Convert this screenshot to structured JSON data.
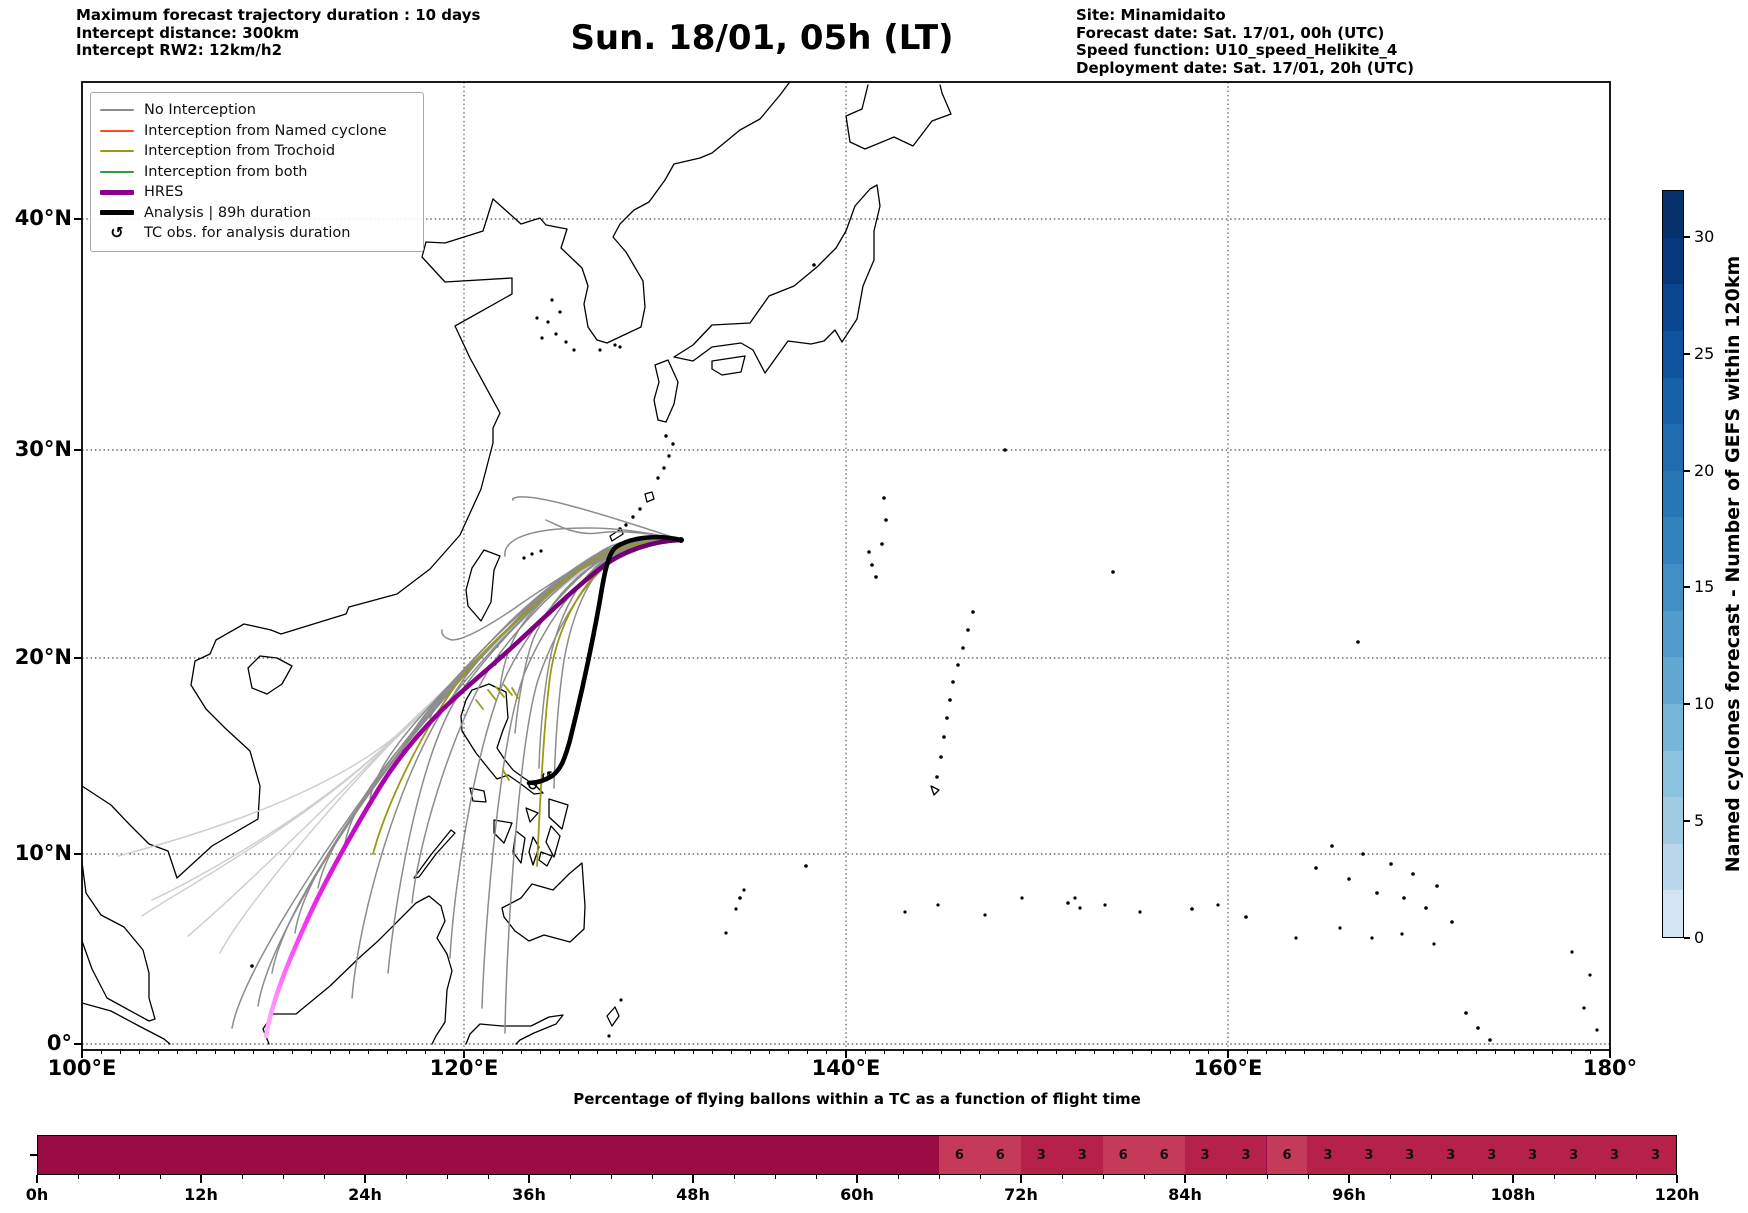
{
  "header": {
    "left_lines": [
      "Maximum forecast trajectory duration : 10 days",
      "Intercept distance: 300km",
      "Intercept RW2: 12km/h2"
    ],
    "title": "Sun. 18/01, 05h (LT)",
    "right_lines": [
      "Site: Minamidaito",
      "Forecast date: Sat. 17/01, 00h (UTC)",
      "Speed function: U10_speed_Helikite_4",
      "Deployment date: Sat. 17/01, 20h (UTC)"
    ]
  },
  "legend": {
    "items": [
      {
        "label": "No Interception",
        "color": "#8c8c8c",
        "thickness": 2,
        "type": "line"
      },
      {
        "label": "Interception from Named cyclone",
        "color": "#ff4b1f",
        "thickness": 2,
        "type": "line"
      },
      {
        "label": "Interception from Trochoid",
        "color": "#9a9a10",
        "thickness": 2,
        "type": "line"
      },
      {
        "label": "Interception from both",
        "color": "#2e9e3e",
        "thickness": 2,
        "type": "line"
      },
      {
        "label": "HRES",
        "color": "#8b008b",
        "thickness": 5,
        "type": "line"
      },
      {
        "label": "Analysis | 89h duration",
        "color": "#000000",
        "thickness": 5,
        "type": "line"
      },
      {
        "label": "TC obs. for analysis duration",
        "color": "#000000",
        "type": "marker",
        "glyph": "↺"
      }
    ]
  },
  "map": {
    "x_tick_labels": [
      "100°E",
      "120°E",
      "140°E",
      "160°E",
      "180°"
    ],
    "y_tick_labels": [
      "40°N",
      "30°N",
      "20°N",
      "10°N",
      "0°"
    ],
    "tc_glyph": "↺"
  },
  "colorbar": {
    "label": "Named cyclones forecast - Number of GEFS within 120km",
    "ticks": [
      0,
      5,
      10,
      15,
      20,
      25,
      30
    ],
    "vmin": 0,
    "vmax": 32,
    "colors_top_to_bottom": [
      "#08306b",
      "#08387c",
      "#0a4590",
      "#0f529e",
      "#1860a8",
      "#1f6cb0",
      "#2776b6",
      "#3282bd",
      "#3f8fc5",
      "#519ccc",
      "#63a8d3",
      "#77b5d9",
      "#8bc0de",
      "#a1cbe2",
      "#bad6eb",
      "#d3e4f3"
    ]
  },
  "bottom_chart": {
    "title": "Percentage of flying ballons within a TC as a function of flight time",
    "x_tick_labels": [
      "0h",
      "12h",
      "24h",
      "36h",
      "48h",
      "60h",
      "72h",
      "84h",
      "96h",
      "108h",
      "120h"
    ],
    "total_hours": 120,
    "base_color": "#9b0b44",
    "value_colors": {
      "6": "#c53a58",
      "3": "#b52149"
    },
    "segments": [
      {
        "start": 66,
        "end": 69,
        "value": "6"
      },
      {
        "start": 69,
        "end": 72,
        "value": "6"
      },
      {
        "start": 72,
        "end": 75,
        "value": "3"
      },
      {
        "start": 75,
        "end": 78,
        "value": "3"
      },
      {
        "start": 78,
        "end": 81,
        "value": "6"
      },
      {
        "start": 81,
        "end": 84,
        "value": "6"
      },
      {
        "start": 84,
        "end": 87,
        "value": "3"
      },
      {
        "start": 87,
        "end": 90,
        "value": "3"
      },
      {
        "start": 90,
        "end": 93,
        "value": "6"
      },
      {
        "start": 93,
        "end": 96,
        "value": "3"
      },
      {
        "start": 96,
        "end": 99,
        "value": "3"
      },
      {
        "start": 99,
        "end": 102,
        "value": "3"
      },
      {
        "start": 102,
        "end": 105,
        "value": "3"
      },
      {
        "start": 105,
        "end": 108,
        "value": "3"
      },
      {
        "start": 108,
        "end": 111,
        "value": "3"
      },
      {
        "start": 111,
        "end": 114,
        "value": "3"
      },
      {
        "start": 114,
        "end": 117,
        "value": "3"
      },
      {
        "start": 117,
        "end": 120,
        "value": "3"
      }
    ]
  },
  "chart_data": [
    {
      "type": "line",
      "name": "trajectory_map",
      "title": "Sun. 18/01, 05h (LT)",
      "projection": "Mercator",
      "x_axis": {
        "label": "longitude",
        "ticks_deg_east": [
          100,
          120,
          140,
          160,
          180
        ]
      },
      "y_axis": {
        "label": "latitude",
        "ticks_deg_north": [
          0,
          10,
          20,
          30,
          40
        ]
      },
      "grid": "dotted",
      "site": {
        "name": "Minamidaito",
        "lon_e": 131.2,
        "lat_n": 25.8
      },
      "series": [
        {
          "name": "No Interception",
          "color": "gray",
          "approx_count": 24,
          "spread": "fan from site SW across South China Sea toward Borneo and Philippines"
        },
        {
          "name": "No Interception (older/faded)",
          "color": "lightgray",
          "approx_count": 5,
          "spread": "farther SW toward Malay Peninsula"
        },
        {
          "name": "Interception from Trochoid",
          "color": "olive",
          "approx_count": 2,
          "approx_end_lon_lat": [
            [
              122.4,
              9.1
            ],
            [
              115.2,
              9.6
            ]
          ]
        },
        {
          "name": "HRES",
          "color": "purple-to-magenta gradient",
          "approx_end_lon_lat": [
            [
              109.7,
              0.8
            ]
          ]
        },
        {
          "name": "Analysis",
          "duration_h": 89,
          "color": "black",
          "approx_end_lon_lat": [
            [
              123.3,
              13.9
            ]
          ]
        }
      ],
      "colorbar": {
        "label": "Named cyclones forecast - Number of GEFS within 120km",
        "ticks": [
          0,
          5,
          10,
          15,
          20,
          25,
          30
        ],
        "range": [
          0,
          32
        ]
      }
    },
    {
      "type": "bar",
      "name": "tc_percentage_timeline",
      "title": "Percentage of flying ballons within a TC as a function of flight time",
      "x_range_h": [
        0,
        120
      ],
      "x_ticks_h": [
        0,
        12,
        24,
        36,
        48,
        60,
        72,
        84,
        96,
        108,
        120
      ],
      "uniform_region_h": [
        0,
        66
      ],
      "labeled_segments_start_h": 66,
      "segment_width_h": 3,
      "segment_values": [
        6,
        6,
        3,
        3,
        6,
        6,
        3,
        3,
        6,
        3,
        3,
        3,
        3,
        3,
        3,
        3,
        3,
        3
      ]
    }
  ]
}
